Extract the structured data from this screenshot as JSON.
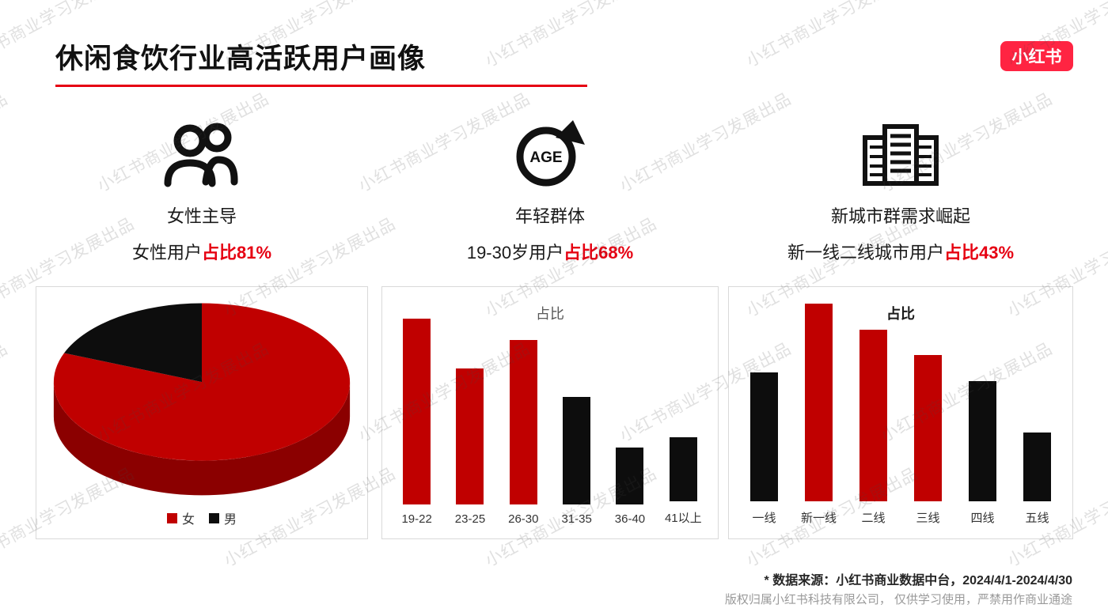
{
  "page": {
    "title": "休闲食饮行业高活跃用户画像",
    "logo_text": "小红书",
    "watermark_text": "小红书商业学习发展出品",
    "colors": {
      "accent_red": "#e60012",
      "logo_red": "#ff2442",
      "bar_red": "#c00000",
      "bar_black": "#0d0d0d",
      "pie_side_red": "#8b0000"
    }
  },
  "highlights": [
    {
      "icon": "two-people-icon",
      "label": "女性主导",
      "stat_text": "女性用户",
      "stat_highlight": "占比81%"
    },
    {
      "icon": "age-circle-arrow-icon",
      "label": "年轻群体",
      "stat_text": "19-30岁用户",
      "stat_highlight": "占比68%"
    },
    {
      "icon": "city-buildings-icon",
      "label": "新城市群需求崛起",
      "stat_text": "新一线二线城市用户",
      "stat_highlight": "占比43%"
    }
  ],
  "chart_data": [
    {
      "type": "pie",
      "title": "",
      "labels": [
        "女",
        "男"
      ],
      "values": [
        81,
        19
      ],
      "colors": [
        "#c00000",
        "#0d0d0d"
      ],
      "side_color": "#8b0000",
      "legend_position": "bottom",
      "style": "3d-pie"
    },
    {
      "type": "bar",
      "title": "占比",
      "categories": [
        "19-22",
        "23-25",
        "26-30",
        "31-35",
        "36-40",
        "41以上"
      ],
      "values": [
        26,
        19,
        23,
        15,
        8,
        9
      ],
      "colors": [
        "#c00000",
        "#c00000",
        "#c00000",
        "#0d0d0d",
        "#0d0d0d",
        "#0d0d0d"
      ],
      "xlabel": "",
      "ylabel": "",
      "grid": false,
      "ylim": [
        0,
        28
      ],
      "legend_position": "none"
    },
    {
      "type": "bar",
      "title": "占比",
      "categories": [
        "一线",
        "新一线",
        "二线",
        "三线",
        "四线",
        "五线"
      ],
      "values": [
        15,
        23,
        20,
        17,
        14,
        8
      ],
      "colors": [
        "#0d0d0d",
        "#c00000",
        "#c00000",
        "#c00000",
        "#0d0d0d",
        "#0d0d0d"
      ],
      "xlabel": "",
      "ylabel": "",
      "grid": false,
      "ylim": [
        0,
        25
      ],
      "legend_position": "none"
    }
  ],
  "footer": {
    "source_note": "* 数据来源：小红书商业数据中台，2024/4/1-2024/4/30",
    "copyright_note": "版权归属小红书科技有限公司， 仅供学习使用，严禁用作商业通途"
  }
}
